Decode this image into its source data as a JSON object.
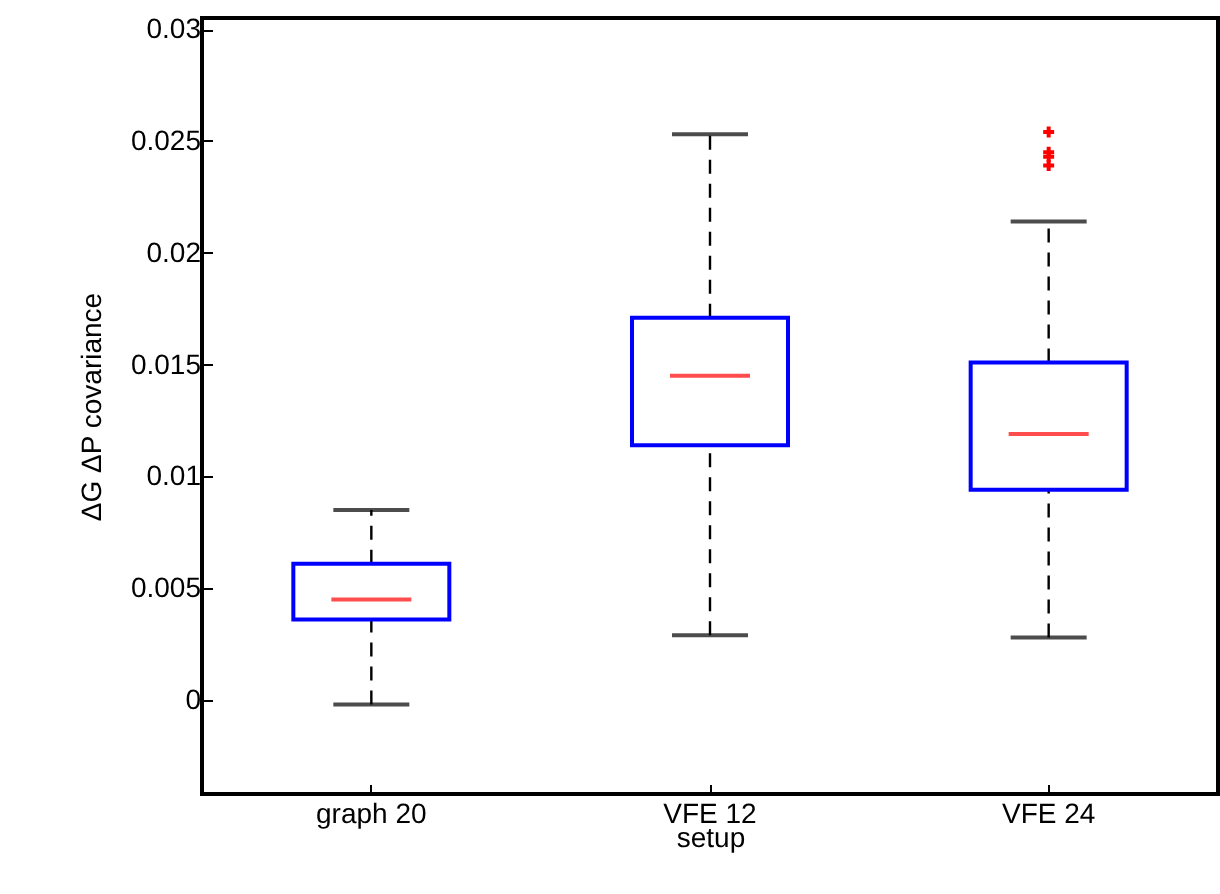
{
  "chart_data": {
    "type": "box",
    "xlabel": "setup",
    "ylabel": "ΔG ΔP covariance",
    "categories": [
      "graph 20",
      "VFE 12",
      "VFE 24"
    ],
    "ylim": [
      -0.0042,
      0.0305
    ],
    "yticks": [
      0,
      0.005,
      0.01,
      0.015,
      0.02,
      0.025,
      0.03
    ],
    "boxes": [
      {
        "low": -0.0002,
        "q1": 0.0036,
        "median": 0.0045,
        "q3": 0.0061,
        "high": 0.0085
      },
      {
        "low": 0.0029,
        "q1": 0.0114,
        "median": 0.0145,
        "q3": 0.0171,
        "high": 0.0253
      },
      {
        "low": 0.0028,
        "q1": 0.0094,
        "median": 0.0119,
        "q3": 0.0151,
        "high": 0.0214,
        "outliers": [
          0.0254,
          0.0245,
          0.0243,
          0.0239
        ]
      }
    ]
  }
}
